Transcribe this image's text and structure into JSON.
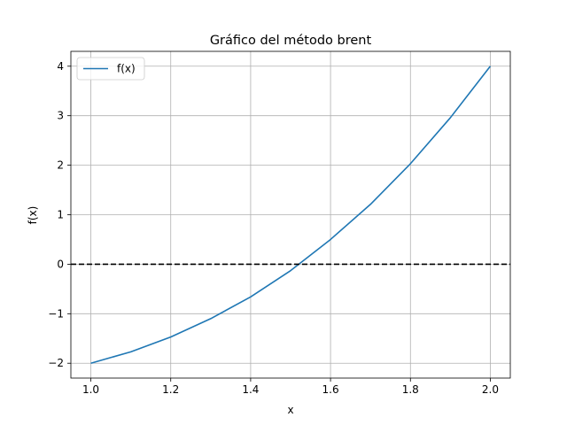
{
  "chart_data": {
    "type": "line",
    "title": "Gráfico del método brent",
    "xlabel": "x",
    "ylabel": "f(x)",
    "xlim": [
      0.95,
      2.05
    ],
    "ylim": [
      -2.3,
      4.3
    ],
    "grid": true,
    "legend_placement": "top-left",
    "xticks": [
      1.0,
      1.2,
      1.4,
      1.6,
      1.8,
      2.0
    ],
    "xtick_labels": [
      "1.0",
      "1.2",
      "1.4",
      "1.6",
      "1.8",
      "2.0"
    ],
    "yticks": [
      -2,
      -1,
      0,
      1,
      2,
      3,
      4
    ],
    "ytick_labels": [
      "−2",
      "−1",
      "0",
      "1",
      "2",
      "3",
      "4"
    ],
    "series": [
      {
        "name": "f(x)",
        "color": "#1f77b4",
        "x": [
          1.0,
          1.1,
          1.2,
          1.3,
          1.4,
          1.5,
          1.6,
          1.7,
          1.8,
          1.9,
          2.0
        ],
        "y": [
          -2.0,
          -1.77,
          -1.47,
          -1.1,
          -0.66,
          -0.13,
          0.5,
          1.21,
          2.03,
          2.96,
          4.0
        ]
      }
    ],
    "reference_line": {
      "y": 0,
      "color": "#000000",
      "style": "dashed"
    }
  }
}
